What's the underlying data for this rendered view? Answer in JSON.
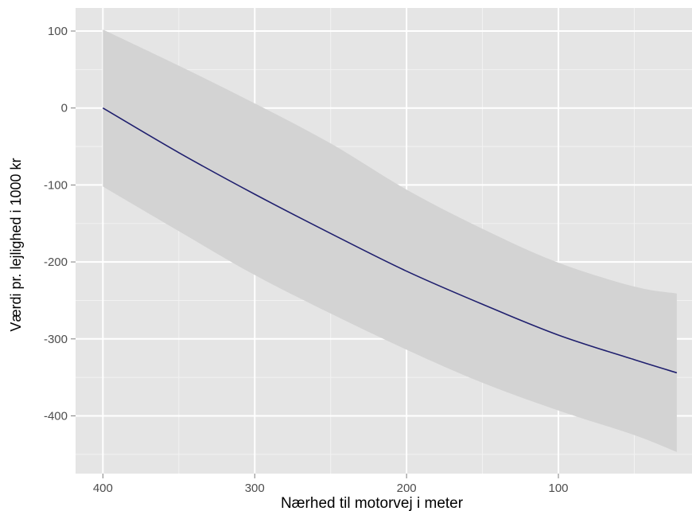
{
  "chart_data": {
    "type": "line",
    "title": "",
    "xlabel": "Nærhed til motorvej i meter",
    "ylabel": "Værdi pr. lejlighed i 1000 kr",
    "x_reversed": true,
    "xlim": [
      418,
      12
    ],
    "ylim": [
      -475,
      130
    ],
    "x_ticks": [
      400,
      300,
      200,
      100
    ],
    "x_tick_labels": [
      "400",
      "300",
      "200",
      "100"
    ],
    "y_ticks": [
      100,
      0,
      -100,
      -200,
      -300,
      -400
    ],
    "y_tick_labels": [
      "100",
      "0",
      "-100",
      "-200",
      "-300",
      "-400"
    ],
    "grid": true,
    "legend": "none",
    "colors": {
      "panel": "#e5e5e5",
      "ribbon": "#d3d3d3",
      "line": "#1f1f6e",
      "grid": "#ffffff"
    },
    "series": [
      {
        "x": [
          400,
          350,
          300,
          250,
          200,
          150,
          100,
          50,
          22
        ],
        "y": [
          0,
          -58,
          -112,
          -163,
          -212,
          -255,
          -295,
          -327,
          -344
        ],
        "lower": [
          -102,
          -160,
          -217,
          -267,
          -314,
          -357,
          -393,
          -425,
          -447
        ],
        "upper": [
          102,
          55,
          6,
          -46,
          -106,
          -157,
          -201,
          -232,
          -241
        ]
      }
    ]
  }
}
